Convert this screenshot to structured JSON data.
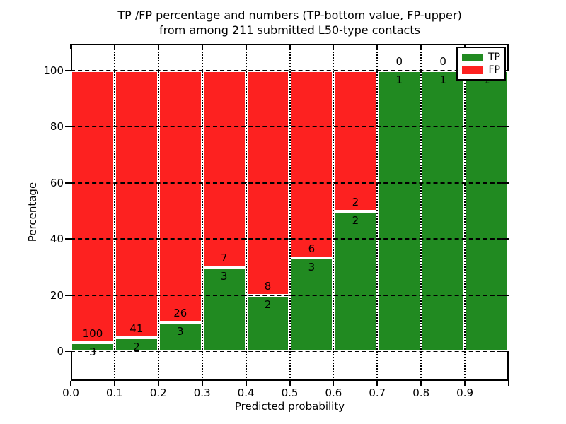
{
  "chart_data": {
    "type": "bar",
    "stacking": "percent",
    "title_line1": "TP /FP percentage and numbers (TP-bottom value, FP-upper)",
    "title_line2": "from among 211 submitted L50-type contacts",
    "xlabel": "Predicted probability",
    "ylabel": "Percentage",
    "total_contacts": 211,
    "categories": [
      "0.0-0.1",
      "0.1-0.2",
      "0.2-0.3",
      "0.3-0.4",
      "0.4-0.5",
      "0.5-0.6",
      "0.6-0.7",
      "0.7-0.8",
      "0.8-0.9",
      "0.9-1.0"
    ],
    "series": [
      {
        "name": "TP",
        "color": "#218a21",
        "values": [
          3,
          2,
          3,
          3,
          2,
          3,
          2,
          1,
          1,
          1
        ]
      },
      {
        "name": "FP",
        "color": "#fd2120",
        "values": [
          100,
          41,
          26,
          7,
          8,
          6,
          2,
          0,
          0,
          0
        ]
      }
    ],
    "tp_percent_displayed": [
      2.9,
      4.7,
      10.3,
      30.0,
      20.0,
      33.3,
      50.0,
      100.0,
      100.0,
      100.0
    ],
    "x_tick_labels": [
      "0.0",
      "0.1",
      "0.2",
      "0.3",
      "0.4",
      "0.5",
      "0.6",
      "0.7",
      "0.8",
      "0.9"
    ],
    "y_ticks": [
      0,
      20,
      40,
      60,
      80,
      100
    ],
    "y_tick_labels": [
      "0",
      "20",
      "40",
      "60",
      "80",
      "100"
    ],
    "xlim": [
      0.0,
      1.0
    ],
    "ylim": [
      -10.6,
      109.6
    ],
    "grid": "black dotted, drawn over bars",
    "bar_edge_color": "#ffffff",
    "background": "#ffffff",
    "legend_position": "upper right",
    "legend": [
      {
        "label": "TP",
        "color": "#218a21"
      },
      {
        "label": "FP",
        "color": "#fd2120"
      }
    ]
  }
}
